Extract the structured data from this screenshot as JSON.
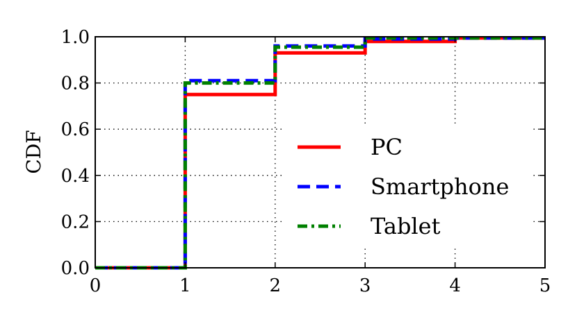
{
  "chart_data": {
    "type": "line",
    "step": "post",
    "ylabel": "CDF",
    "xlabel": "",
    "xlim": [
      0,
      5
    ],
    "ylim": [
      0,
      1
    ],
    "xticks": [
      "0",
      "1",
      "2",
      "3",
      "4",
      "5"
    ],
    "yticks": [
      "0.0",
      "0.2",
      "0.4",
      "0.6",
      "0.8",
      "1.0"
    ],
    "grid": true,
    "legend_position": "center-right",
    "series": [
      {
        "name": "PC",
        "color": "#ff0000",
        "style": "solid",
        "x": [
          0,
          1,
          2,
          3,
          4,
          5
        ],
        "y": [
          0.0,
          0.75,
          0.93,
          0.98,
          0.995,
          0.995
        ]
      },
      {
        "name": "Smartphone",
        "color": "#0000ff",
        "style": "dashed",
        "x": [
          0,
          1,
          2,
          3,
          4,
          5
        ],
        "y": [
          0.0,
          0.81,
          0.96,
          0.99,
          0.995,
          0.995
        ]
      },
      {
        "name": "Tablet",
        "color": "#008000",
        "style": "dashdot",
        "x": [
          0,
          1,
          2,
          3,
          4,
          5
        ],
        "y": [
          0.0,
          0.8,
          0.955,
          0.995,
          0.995,
          0.995
        ]
      }
    ]
  }
}
